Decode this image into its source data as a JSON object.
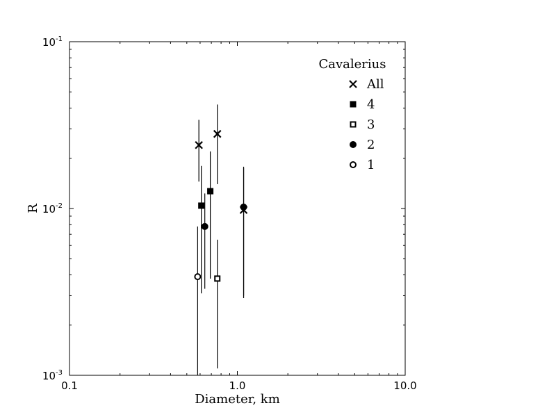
{
  "chart_data": {
    "type": "scatter",
    "title": "",
    "xlabel": "Diameter, km",
    "ylabel": "R",
    "xscale": "log",
    "yscale": "log",
    "xlim": [
      0.1,
      10.0
    ],
    "ylim": [
      0.001,
      0.1
    ],
    "grid": false,
    "legend": {
      "title": "Cavalerius",
      "placement": "top-right",
      "entries": [
        {
          "label": "All",
          "marker": "x"
        },
        {
          "label": "4",
          "marker": "filled-square"
        },
        {
          "label": "3",
          "marker": "open-square"
        },
        {
          "label": "2",
          "marker": "filled-circle"
        },
        {
          "label": "1",
          "marker": "open-circle"
        }
      ]
    },
    "x_ticks": [
      {
        "label": "0.1",
        "value": 0.1
      },
      {
        "label": "1.0",
        "value": 1.0
      },
      {
        "label": "10.0",
        "value": 10.0
      }
    ],
    "y_ticks": [
      {
        "base": "10",
        "exp": "-3",
        "value": 0.001
      },
      {
        "base": "10",
        "exp": "-2",
        "value": 0.01
      },
      {
        "base": "10",
        "exp": "-1",
        "value": 0.1
      }
    ],
    "series": [
      {
        "name": "All",
        "marker": "x",
        "points": [
          {
            "x": 0.59,
            "y": 0.024,
            "ylo": 0.0145,
            "yhi": 0.034
          },
          {
            "x": 0.76,
            "y": 0.028,
            "ylo": 0.014,
            "yhi": 0.042
          },
          {
            "x": 1.09,
            "y": 0.0098,
            "ylo": 0.003,
            "yhi": 0.0175
          }
        ]
      },
      {
        "name": "4",
        "marker": "filled-square",
        "points": [
          {
            "x": 0.61,
            "y": 0.0104,
            "ylo": 0.0031,
            "yhi": 0.018
          },
          {
            "x": 0.69,
            "y": 0.0127,
            "ylo": 0.0038,
            "yhi": 0.022
          }
        ]
      },
      {
        "name": "3",
        "marker": "open-square",
        "points": [
          {
            "x": 0.76,
            "y": 0.0038,
            "ylo": 0.0011,
            "yhi": 0.0065
          }
        ]
      },
      {
        "name": "2",
        "marker": "filled-circle",
        "points": [
          {
            "x": 0.64,
            "y": 0.0078,
            "ylo": 0.0033,
            "yhi": 0.0123
          },
          {
            "x": 1.09,
            "y": 0.0102,
            "ylo": 0.0029,
            "yhi": 0.0178
          }
        ]
      },
      {
        "name": "1",
        "marker": "open-circle",
        "points": [
          {
            "x": 0.58,
            "y": 0.0039,
            "ylo": 0.0009,
            "yhi": 0.0078
          }
        ]
      }
    ]
  }
}
